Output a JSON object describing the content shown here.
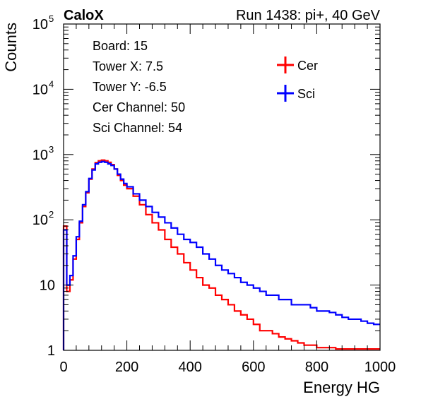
{
  "chart_data": {
    "type": "line",
    "title": "CaloX",
    "subtitle": "Run 1438: pi+, 40 GeV",
    "xlabel": "Energy HG",
    "ylabel": "Counts",
    "xlim": [
      0,
      1000
    ],
    "ylim": [
      1,
      100000
    ],
    "yscale": "log",
    "x_ticks": [
      0,
      200,
      400,
      600,
      800,
      1000
    ],
    "y_ticks": [
      {
        "value": 1,
        "base": "1",
        "exp": ""
      },
      {
        "value": 10,
        "base": "10",
        "exp": ""
      },
      {
        "value": 100,
        "base": "10",
        "exp": "2"
      },
      {
        "value": 1000,
        "base": "10",
        "exp": "3"
      },
      {
        "value": 10000,
        "base": "10",
        "exp": "4"
      },
      {
        "value": 100000,
        "base": "10",
        "exp": "5"
      }
    ],
    "info_lines": [
      "Board: 15",
      "Tower X: 7.5",
      "Tower Y: -6.5",
      "Cer Channel: 50",
      "Sci Channel: 54"
    ],
    "legend_position": "top-right",
    "series": [
      {
        "name": "Cer",
        "color": "#ff0000",
        "x": [
          0,
          10,
          20,
          30,
          40,
          50,
          60,
          70,
          80,
          90,
          100,
          110,
          120,
          130,
          140,
          150,
          160,
          170,
          180,
          190,
          200,
          220,
          240,
          260,
          280,
          300,
          320,
          340,
          360,
          380,
          400,
          420,
          440,
          460,
          480,
          500,
          520,
          540,
          560,
          580,
          600,
          620,
          640,
          660,
          680,
          700,
          720,
          740,
          760,
          780,
          800,
          820,
          840,
          860,
          880,
          900,
          920,
          940,
          960,
          980,
          1000
        ],
        "y": [
          80,
          8,
          12,
          25,
          50,
          90,
          160,
          260,
          420,
          600,
          750,
          800,
          820,
          800,
          760,
          700,
          600,
          480,
          400,
          340,
          300,
          230,
          170,
          120,
          90,
          70,
          50,
          38,
          30,
          22,
          17,
          13,
          10,
          9,
          7,
          6,
          5,
          4,
          3.5,
          3,
          2.5,
          2,
          2,
          1.8,
          1.6,
          1.5,
          1.4,
          1.3,
          1.2,
          1.2,
          1.1,
          1.1,
          1.1,
          1.05,
          1.05,
          1.05,
          1.05,
          1.05,
          1.05,
          1.05,
          1.05
        ]
      },
      {
        "name": "Sci",
        "color": "#0000ff",
        "x": [
          0,
          10,
          20,
          30,
          40,
          50,
          60,
          70,
          80,
          90,
          100,
          110,
          120,
          130,
          140,
          150,
          160,
          170,
          180,
          190,
          200,
          220,
          240,
          260,
          280,
          300,
          320,
          340,
          360,
          380,
          400,
          420,
          440,
          460,
          480,
          500,
          520,
          540,
          560,
          580,
          600,
          620,
          640,
          660,
          680,
          700,
          720,
          740,
          760,
          780,
          800,
          820,
          840,
          860,
          880,
          900,
          920,
          940,
          960,
          980,
          1000
        ],
        "y": [
          70,
          10,
          14,
          28,
          55,
          95,
          170,
          270,
          430,
          580,
          720,
          760,
          780,
          760,
          720,
          680,
          600,
          500,
          420,
          360,
          320,
          250,
          200,
          160,
          130,
          110,
          90,
          75,
          60,
          50,
          45,
          38,
          30,
          25,
          20,
          17,
          15,
          13,
          11,
          10,
          9,
          8,
          7,
          7,
          6,
          6,
          5,
          5,
          5,
          4.5,
          4,
          4,
          3.8,
          3.5,
          3.2,
          3,
          3,
          2.8,
          2.6,
          2.5,
          2.5
        ]
      }
    ]
  }
}
